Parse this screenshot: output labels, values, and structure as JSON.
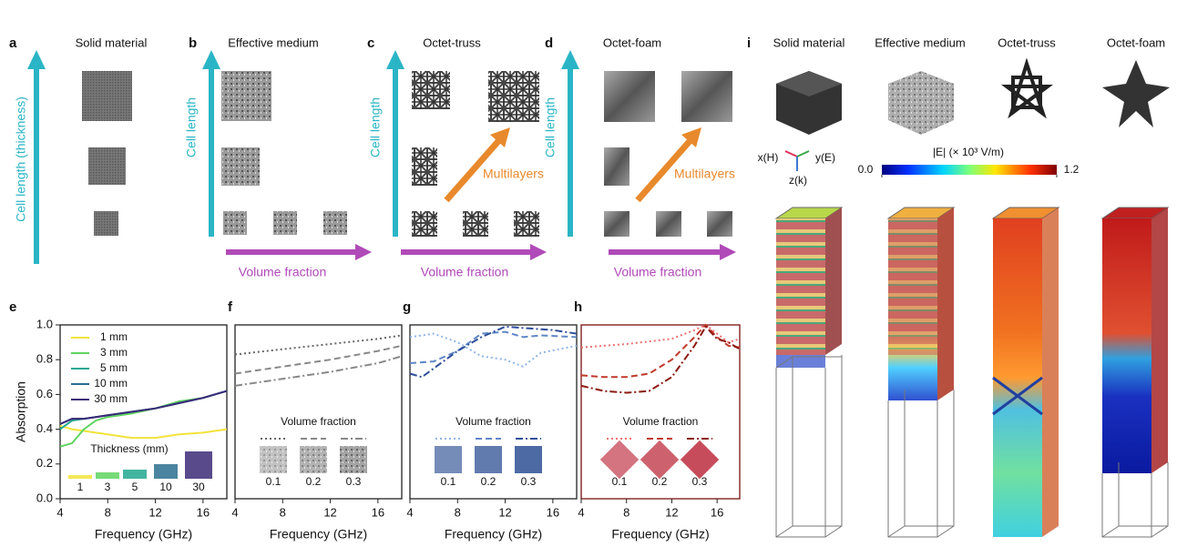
{
  "panels": [
    {
      "label": "a",
      "title": "Solid material",
      "y_label": "Cell length (thickness)"
    },
    {
      "label": "b",
      "title": "Effective medium",
      "y_label": "Cell length",
      "x_label": "Volume fraction"
    },
    {
      "label": "c",
      "title": "Octet-truss",
      "y_label": "Cell length",
      "x_label": "Volume fraction",
      "arrow_label": "Multilayers"
    },
    {
      "label": "d",
      "title": "Octet-foam",
      "y_label": "Cell length",
      "x_label": "Volume fraction",
      "arrow_label": "Multilayers"
    }
  ],
  "charts": [
    {
      "type": "line",
      "label": "e",
      "xlabel": "Frequency (GHz)",
      "ylabel": "Absorption",
      "xlim": [
        4,
        18
      ],
      "xticks": [
        4,
        8,
        12,
        16
      ],
      "ylim": [
        0,
        1
      ],
      "yticks": [
        {
          "value": 0,
          "label": "0.0"
        },
        0.2,
        0.4,
        0.6,
        0.8,
        {
          "value": 1,
          "label": "1.0"
        }
      ],
      "legend": "upper left",
      "frame_color": "#222222",
      "x": [
        4,
        5,
        6,
        7,
        8,
        10,
        12,
        14,
        16,
        18
      ],
      "series": [
        {
          "name": "1 mm",
          "color": "#f2e33a",
          "line_style": "solid",
          "values": [
            0.42,
            0.4,
            0.39,
            0.38,
            0.37,
            0.35,
            0.35,
            0.37,
            0.38,
            0.4
          ]
        },
        {
          "name": "3 mm",
          "color": "#5fd35f",
          "line_style": "solid",
          "values": [
            0.3,
            0.32,
            0.4,
            0.45,
            0.47,
            0.49,
            0.52,
            0.56,
            0.58,
            0.62
          ]
        },
        {
          "name": "5 mm",
          "color": "#21a890",
          "line_style": "solid",
          "values": [
            0.4,
            0.45,
            0.46,
            0.47,
            0.48,
            0.5,
            0.52,
            0.55,
            0.58,
            0.62
          ]
        },
        {
          "name": "10 mm",
          "color": "#2b6f8f",
          "line_style": "solid",
          "values": [
            0.43,
            0.46,
            0.46,
            0.47,
            0.48,
            0.5,
            0.52,
            0.55,
            0.58,
            0.62
          ]
        },
        {
          "name": "30 mm",
          "color": "#3c2a78",
          "line_style": "solid",
          "values": [
            0.43,
            0.46,
            0.46,
            0.47,
            0.48,
            0.5,
            0.52,
            0.55,
            0.58,
            0.62
          ]
        }
      ],
      "inset": {
        "title": "Thickness (mm)",
        "labels": [
          "1",
          "3",
          "5",
          "10",
          "30"
        ]
      }
    },
    {
      "type": "line",
      "label": "f",
      "xlabel": "Frequency (GHz)",
      "xlim": [
        4,
        18
      ],
      "xticks": [
        4,
        8,
        12,
        16
      ],
      "ylim": [
        0,
        1
      ],
      "frame_color": "#222222",
      "legend_title": "Volume fraction",
      "inset_icon": "noise",
      "x": [
        4,
        8,
        12,
        16,
        18
      ],
      "series": [
        {
          "name": "0.1",
          "color": "#666666",
          "line_style": "dotted",
          "values": [
            0.83,
            0.86,
            0.89,
            0.92,
            0.94
          ]
        },
        {
          "name": "0.2",
          "color": "#888888",
          "line_style": "dashed",
          "values": [
            0.72,
            0.76,
            0.8,
            0.85,
            0.88
          ]
        },
        {
          "name": "0.3",
          "color": "#888888",
          "line_style": "dashdot",
          "values": [
            0.65,
            0.69,
            0.73,
            0.78,
            0.82
          ]
        }
      ]
    },
    {
      "type": "line",
      "label": "g",
      "xlabel": "Frequency (GHz)",
      "xlim": [
        4,
        18
      ],
      "xticks": [
        4,
        8,
        12,
        16
      ],
      "ylim": [
        0,
        1
      ],
      "frame_color": "#222222",
      "legend_title": "Volume fraction",
      "inset_icon": "truss",
      "series": [
        {
          "name": "0.1",
          "color": "#8fb4e8",
          "line_style": "dotted",
          "x": [
            4,
            6,
            8,
            10,
            12,
            13.5,
            15,
            18
          ],
          "values": [
            0.93,
            0.95,
            0.9,
            0.82,
            0.8,
            0.76,
            0.84,
            0.88
          ]
        },
        {
          "name": "0.2",
          "color": "#5f86c8",
          "line_style": "dashed",
          "x": [
            4,
            6,
            8,
            10,
            12,
            13.5,
            15,
            18
          ],
          "values": [
            0.78,
            0.79,
            0.85,
            0.95,
            0.96,
            0.93,
            0.94,
            0.93
          ]
        },
        {
          "name": "0.3",
          "color": "#2f4f9a",
          "line_style": "dashdot",
          "x": [
            4,
            5,
            6,
            8,
            10,
            12,
            14,
            16,
            18
          ],
          "values": [
            0.72,
            0.7,
            0.75,
            0.85,
            0.93,
            0.99,
            0.98,
            0.97,
            0.95
          ]
        }
      ]
    },
    {
      "type": "line",
      "label": "h",
      "xlabel": "Frequency (GHz)",
      "xlim": [
        4,
        18
      ],
      "xticks": [
        4,
        8,
        12,
        16
      ],
      "ylim": [
        0,
        1
      ],
      "frame_color": "#7a1010",
      "legend_title": "Volume fraction",
      "inset_icon": "star",
      "series": [
        {
          "name": "0.1",
          "color": "#f07070",
          "line_style": "dotted",
          "x": [
            4,
            8,
            12,
            14,
            15,
            16,
            17,
            18
          ],
          "values": [
            0.87,
            0.89,
            0.92,
            0.97,
            1.0,
            0.95,
            0.9,
            0.92
          ]
        },
        {
          "name": "0.2",
          "color": "#c0392b",
          "line_style": "dashed",
          "x": [
            4,
            6,
            8,
            10,
            12,
            14,
            15,
            16,
            17,
            18
          ],
          "values": [
            0.71,
            0.7,
            0.7,
            0.72,
            0.8,
            0.93,
            1.0,
            0.93,
            0.88,
            0.87
          ]
        },
        {
          "name": "0.3",
          "color": "#8b1a10",
          "line_style": "dashdot",
          "x": [
            4,
            6,
            8,
            10,
            12,
            14,
            15,
            16,
            17,
            18
          ],
          "values": [
            0.65,
            0.62,
            0.61,
            0.62,
            0.7,
            0.88,
            0.99,
            0.92,
            0.9,
            0.86
          ]
        }
      ]
    }
  ],
  "panel_i": {
    "label": "i",
    "titles": [
      "Solid material",
      "Effective medium",
      "Octet-truss",
      "Octet-foam"
    ],
    "axes": [
      "x(H)",
      "y(E)",
      "z(k)"
    ],
    "colorbar": {
      "label": "|E| (× 10³ V/m)",
      "lim": [
        0,
        1.2
      ],
      "ticks": [
        {
          "value": 0,
          "label": "0.0"
        },
        1.2
      ]
    }
  }
}
